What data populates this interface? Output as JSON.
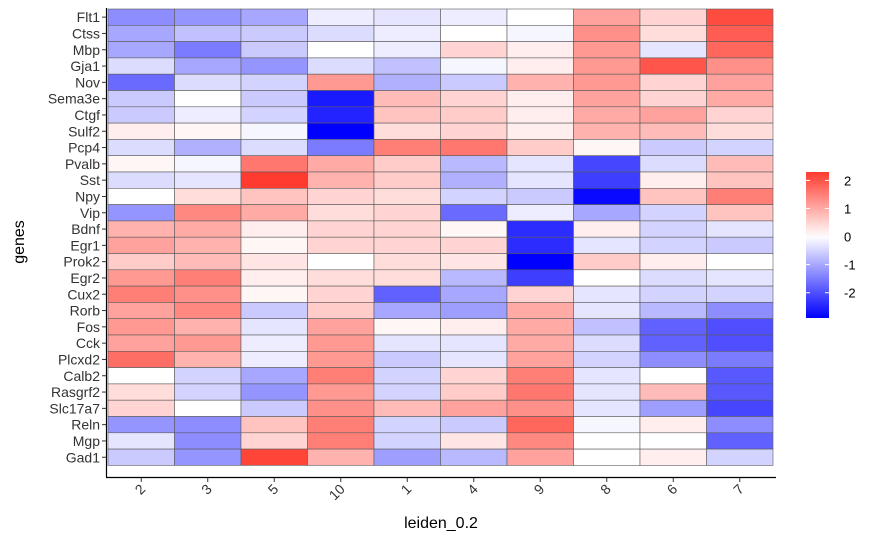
{
  "chart_data": {
    "type": "heatmap",
    "xlabel": "leiden_0.2",
    "ylabel": "genes",
    "x": [
      "2",
      "3",
      "5",
      "10",
      "1",
      "4",
      "9",
      "8",
      "6",
      "7"
    ],
    "y": [
      "Flt1",
      "Ctss",
      "Mbp",
      "Gja1",
      "Nov",
      "Sema3e",
      "Ctgf",
      "Sulf2",
      "Pcp4",
      "Pvalb",
      "Sst",
      "Npy",
      "Vip",
      "Bdnf",
      "Egr1",
      "Prok2",
      "Egr2",
      "Cux2",
      "Rorb",
      "Fos",
      "Cck",
      "Plcxd2",
      "Calb2",
      "Rasgrf2",
      "Slc17a7",
      "Reln",
      "Mgp",
      "Gad1"
    ],
    "values": [
      [
        -1.3,
        -1.2,
        -1.0,
        -0.2,
        -0.3,
        -0.2,
        0.0,
        1.1,
        0.5,
        2.1
      ],
      [
        -1.0,
        -0.7,
        -0.6,
        -0.4,
        -0.2,
        0.0,
        -0.1,
        1.3,
        0.4,
        1.9
      ],
      [
        -1.0,
        -1.5,
        -0.6,
        0.0,
        -0.2,
        0.5,
        0.2,
        1.2,
        -0.3,
        1.8
      ],
      [
        -0.4,
        -1.0,
        -1.2,
        -0.4,
        -0.7,
        -0.1,
        0.2,
        1.2,
        2.0,
        1.3
      ],
      [
        -1.7,
        -0.4,
        -0.5,
        1.2,
        -0.9,
        -0.6,
        0.9,
        1.2,
        0.5,
        1.1
      ],
      [
        -0.6,
        0.0,
        -0.6,
        -2.6,
        0.8,
        0.5,
        0.2,
        1.1,
        0.5,
        1.0
      ],
      [
        -0.6,
        -0.2,
        -0.5,
        -2.5,
        0.7,
        0.6,
        0.2,
        1.0,
        1.1,
        0.5
      ],
      [
        0.2,
        0.1,
        -0.1,
        -2.9,
        0.4,
        0.5,
        0.2,
        0.9,
        0.8,
        0.4
      ],
      [
        -0.4,
        -0.9,
        -0.4,
        -1.5,
        1.5,
        1.6,
        0.6,
        0.1,
        -0.6,
        -0.5
      ],
      [
        0.1,
        -0.1,
        1.6,
        1.0,
        0.6,
        -0.8,
        -0.3,
        -2.1,
        -0.4,
        0.8
      ],
      [
        -0.4,
        -0.3,
        2.3,
        0.9,
        0.6,
        -0.9,
        -0.3,
        -2.2,
        0.2,
        0.7
      ],
      [
        0.0,
        0.4,
        0.7,
        0.5,
        0.4,
        -0.5,
        -0.6,
        -2.8,
        0.7,
        1.5
      ],
      [
        -1.2,
        1.4,
        1.0,
        0.4,
        0.5,
        -1.7,
        -0.2,
        -1.0,
        -0.5,
        0.7
      ],
      [
        0.9,
        1.0,
        0.2,
        0.5,
        0.5,
        0.1,
        -2.4,
        0.2,
        -0.5,
        -0.3
      ],
      [
        1.1,
        0.9,
        0.1,
        0.5,
        0.5,
        0.5,
        -2.4,
        -0.3,
        -0.5,
        -0.6
      ],
      [
        0.6,
        0.8,
        0.3,
        0.0,
        0.4,
        0.3,
        -2.9,
        0.6,
        0.2,
        0.0
      ],
      [
        1.2,
        1.5,
        0.2,
        0.4,
        0.4,
        -0.8,
        -2.2,
        0.0,
        -0.4,
        -0.3
      ],
      [
        1.5,
        1.3,
        0.1,
        0.5,
        -1.8,
        -1.0,
        0.5,
        -0.3,
        -0.5,
        -0.5
      ],
      [
        1.1,
        1.4,
        -0.6,
        0.6,
        -1.0,
        -1.1,
        1.0,
        -0.3,
        -0.8,
        -1.3
      ],
      [
        1.2,
        0.9,
        -0.3,
        1.1,
        0.1,
        0.2,
        1.0,
        -0.7,
        -1.8,
        -2.0
      ],
      [
        1.1,
        1.2,
        -0.2,
        1.2,
        -0.3,
        -0.3,
        1.0,
        -0.4,
        -1.8,
        -2.0
      ],
      [
        1.7,
        0.9,
        -0.2,
        1.2,
        -0.6,
        -0.3,
        1.1,
        -0.5,
        -1.3,
        -1.5
      ],
      [
        0.0,
        -0.5,
        -1.0,
        1.5,
        -0.5,
        0.5,
        1.5,
        -0.3,
        0.0,
        -1.9
      ],
      [
        0.4,
        -0.5,
        -1.2,
        1.2,
        -0.5,
        0.6,
        1.6,
        -0.3,
        0.8,
        -1.9
      ],
      [
        0.5,
        0.0,
        -0.6,
        1.3,
        0.8,
        1.1,
        1.3,
        -0.3,
        -1.1,
        -2.1
      ],
      [
        -1.2,
        -1.3,
        0.7,
        1.5,
        -0.5,
        -0.6,
        1.8,
        -0.1,
        0.2,
        -1.3
      ],
      [
        -0.3,
        -1.3,
        0.5,
        1.5,
        -0.5,
        0.3,
        1.4,
        0.0,
        0.0,
        -1.8
      ],
      [
        -0.6,
        -1.2,
        2.2,
        0.9,
        -1.1,
        -0.8,
        1.1,
        0.0,
        0.2,
        -0.5
      ]
    ],
    "colorbar": {
      "ticks": [
        2,
        1,
        0,
        -1,
        -2
      ],
      "tick_labels": [
        "2",
        "1",
        "0",
        "-1",
        "-2"
      ],
      "min": -2.9,
      "max": 2.3,
      "low_color": "#0000ff",
      "mid_color": "#ffffff",
      "high_color": "#ff3b2f"
    },
    "grid": false,
    "legend_position": "right"
  }
}
